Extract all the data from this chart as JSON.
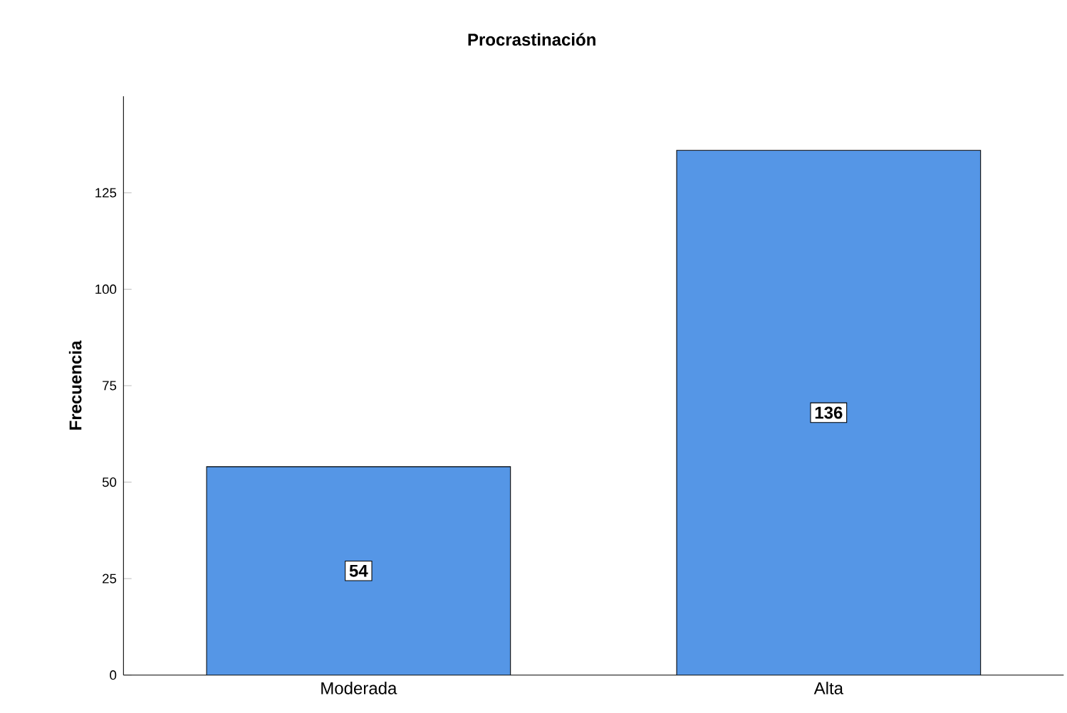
{
  "chart_data": {
    "type": "bar",
    "title": "Procrastinación",
    "ylabel": "Frecuencia",
    "categories": [
      "Moderada",
      "Alta"
    ],
    "values": [
      54,
      136
    ],
    "color": "#5596e6",
    "ylim": [
      0,
      150
    ],
    "yticks": [
      0,
      25,
      50,
      75,
      100,
      125
    ],
    "data_labels": true
  }
}
